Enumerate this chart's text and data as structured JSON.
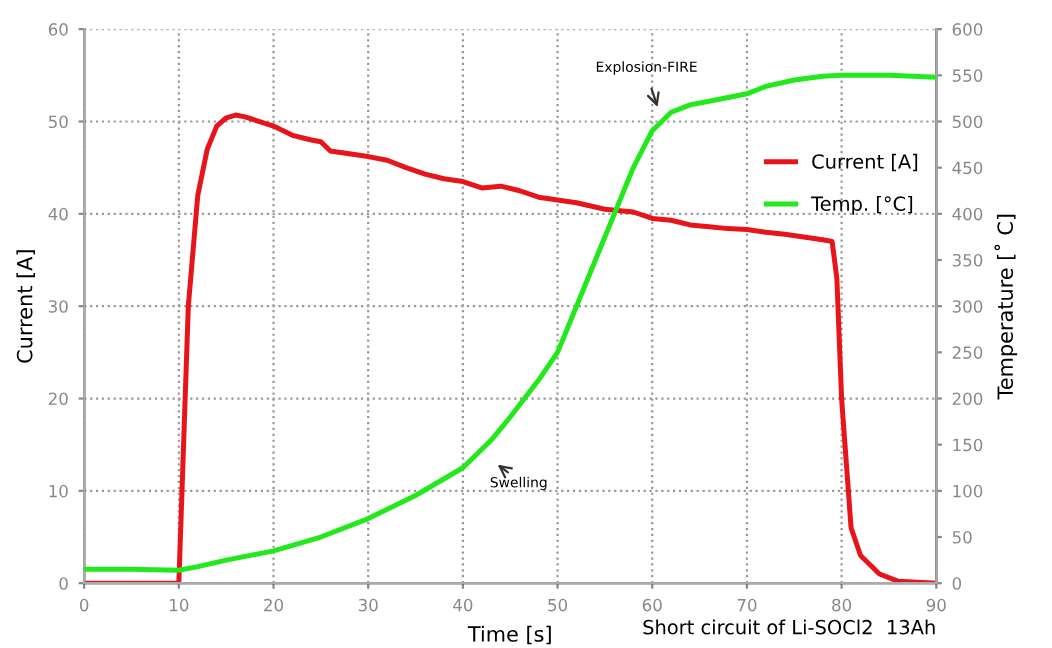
{
  "chart_data": {
    "type": "line",
    "xlabel": "Time [s]",
    "ylabel": "Current [A]",
    "y2label": "Temperature [˚ C]",
    "xlim": [
      0,
      90
    ],
    "xticks": [
      0,
      10,
      20,
      30,
      40,
      50,
      60,
      70,
      80,
      90
    ],
    "ylim": [
      0,
      60
    ],
    "yticks": [
      0,
      10,
      20,
      30,
      40,
      50,
      60
    ],
    "y2lim": [
      0,
      600
    ],
    "y2ticks": [
      0,
      50,
      100,
      150,
      200,
      250,
      300,
      350,
      400,
      450,
      500,
      550,
      600
    ],
    "grid": true,
    "legend": "right",
    "marker": "none",
    "line_style": "solid",
    "series": [
      {
        "name": "Current [A]",
        "color": "#e8141c",
        "x": [
          0,
          9.8,
          10,
          10.5,
          11,
          12,
          13,
          14,
          15,
          16,
          17,
          20,
          22,
          24,
          25,
          26,
          28,
          30,
          32,
          34,
          36,
          38,
          40,
          42,
          44,
          46,
          48,
          50,
          52,
          55,
          58,
          60,
          62,
          64,
          66,
          68,
          70,
          72,
          74,
          76,
          78,
          79,
          79.5,
          80,
          81,
          82,
          83,
          84,
          86,
          90
        ],
        "values": [
          0,
          0,
          0,
          15,
          30,
          42,
          47,
          49.5,
          50.4,
          50.7,
          50.5,
          49.5,
          48.5,
          48,
          47.8,
          46.8,
          46.5,
          46.2,
          45.8,
          45,
          44.3,
          43.8,
          43.5,
          42.8,
          43,
          42.5,
          41.8,
          41.5,
          41.2,
          40.5,
          40.2,
          39.5,
          39.3,
          38.8,
          38.6,
          38.4,
          38.3,
          38,
          37.8,
          37.5,
          37.2,
          37,
          33,
          20,
          6,
          3,
          2,
          1,
          0.2,
          0
        ]
      },
      {
        "name": "Temp. [°C]",
        "color": "#22e81c",
        "axis": "y2",
        "x": [
          0,
          5,
          10,
          12,
          15,
          20,
          25,
          30,
          35,
          40,
          43,
          45,
          48,
          50,
          52,
          54,
          56,
          58,
          60,
          62,
          64,
          66,
          68,
          70,
          72,
          75,
          78,
          80,
          85,
          90
        ],
        "values": [
          15,
          15,
          14,
          18,
          25,
          35,
          50,
          70,
          95,
          125,
          155,
          180,
          220,
          250,
          300,
          350,
          400,
          450,
          490,
          510,
          518,
          522,
          526,
          530,
          538,
          545,
          549,
          550,
          550,
          548
        ]
      }
    ],
    "annotations": [
      "Explosion-FIRE",
      "Swelling",
      "Short circuit of Li-SOCl2  13Ah"
    ]
  }
}
